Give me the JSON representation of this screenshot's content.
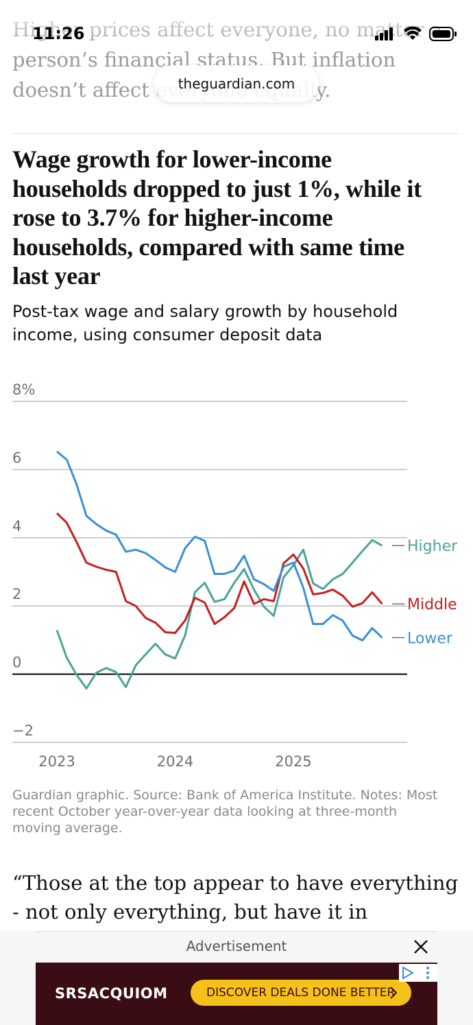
{
  "status_bar": {
    "time": "11:26"
  },
  "browser": {
    "url": "theguardian.com"
  },
  "article": {
    "previous_text": [
      "Higher prices affect everyone, no matter a",
      "person’s financial status. But inflation",
      "doesn’t affect everyone equally."
    ],
    "quote": [
      "“Those at the top appear to have everything",
      "- not only everything, but have it in"
    ]
  },
  "chart_data": {
    "type": "line",
    "title": [
      "Wage growth for lower-income",
      "households dropped to just 1%, while it",
      "rose to 3.7% for higher-income",
      "households, compared with same time",
      "last year"
    ],
    "subtitle": [
      "Post-tax wage and salary growth by household",
      "income, using consumer deposit data"
    ],
    "categories": [
      "2023",
      null,
      null,
      null,
      null,
      null,
      null,
      null,
      null,
      null,
      null,
      null,
      "2024",
      null,
      null,
      null,
      null,
      null,
      null,
      null,
      null,
      null,
      null,
      null,
      "2025",
      null,
      null,
      null,
      null,
      null,
      null,
      null,
      null,
      null
    ],
    "series": [
      {
        "name": "Higher",
        "color": "#4aa595",
        "values": [
          1.29,
          0.48,
          -0.02,
          -0.42,
          0.04,
          0.18,
          0.06,
          -0.38,
          0.26,
          0.58,
          0.89,
          0.58,
          0.46,
          1.13,
          2.4,
          2.68,
          2.12,
          2.2,
          2.68,
          3.08,
          2.48,
          1.98,
          1.71,
          2.84,
          3.19,
          3.65,
          2.66,
          2.5,
          2.78,
          2.94,
          3.27,
          3.61,
          3.93,
          3.77
        ]
      },
      {
        "name": "Middle",
        "color": "#c41f1e",
        "values": [
          4.72,
          4.44,
          3.87,
          3.27,
          3.15,
          3.06,
          3.0,
          2.14,
          2.0,
          1.65,
          1.51,
          1.23,
          1.21,
          1.57,
          2.24,
          2.1,
          1.47,
          1.67,
          1.94,
          2.72,
          2.06,
          2.2,
          2.14,
          3.25,
          3.51,
          3.1,
          2.34,
          2.38,
          2.48,
          2.3,
          1.98,
          2.08,
          2.4,
          2.06
        ]
      },
      {
        "name": "Lower",
        "color": "#3a8fd6",
        "values": [
          6.53,
          6.29,
          5.56,
          4.64,
          4.4,
          4.21,
          4.09,
          3.59,
          3.65,
          3.55,
          3.35,
          3.13,
          3.0,
          3.69,
          4.03,
          3.91,
          2.94,
          2.94,
          3.04,
          3.47,
          2.78,
          2.64,
          2.44,
          3.15,
          3.27,
          2.54,
          1.47,
          1.47,
          1.73,
          1.57,
          1.13,
          0.99,
          1.35,
          1.07
        ]
      }
    ],
    "ylim": [
      -2,
      8
    ],
    "yticks": [
      {
        "value": -2,
        "label": "−2"
      },
      0,
      2,
      4,
      6,
      {
        "value": 8,
        "label": "8%"
      }
    ],
    "grid": true,
    "source": [
      "Guardian graphic. Source: Bank of America Institute. Notes: Most",
      "recent October year-over-year data looking at three-month",
      "moving average."
    ]
  },
  "advertisement": {
    "label": "Advertisement",
    "brand": "SRSACQUIOM",
    "cta": "DISCOVER DEALS DONE BETTER"
  }
}
